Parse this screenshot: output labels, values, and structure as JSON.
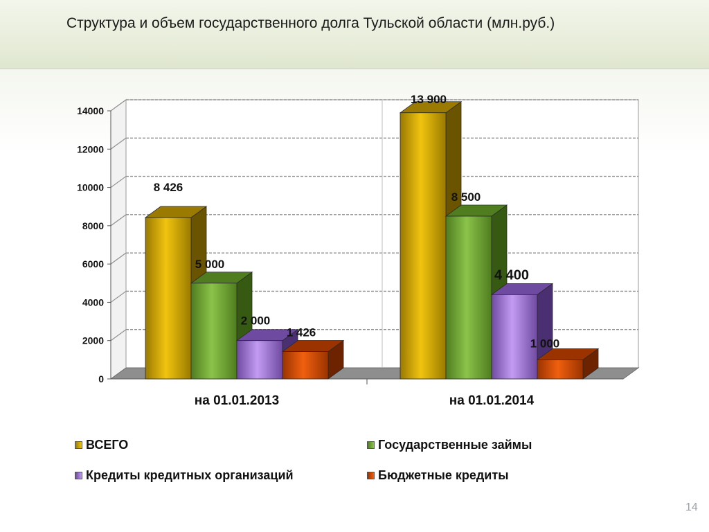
{
  "header": {
    "title": "Структура и объем государственного долга Тульской области (млн.руб.)"
  },
  "chart_data": {
    "type": "bar",
    "categories": [
      "на 01.01.2013",
      "на 01.01.2014"
    ],
    "ylim": [
      0,
      14000
    ],
    "yticks": [
      "0",
      "2000",
      "4000",
      "6000",
      "8000",
      "10000",
      "12000",
      "14000"
    ],
    "grid": true,
    "legend_position": "bottom",
    "series": [
      {
        "name": "ВСЕГО",
        "values": [
          8426,
          13900
        ],
        "labels": [
          "8 426",
          "13 900"
        ],
        "color": "#f1c40f",
        "color_dark": "#9a7a00",
        "color_side": "#6b5400"
      },
      {
        "name": "Государственные займы",
        "values": [
          5000,
          8500
        ],
        "labels": [
          "5 000",
          "8 500"
        ],
        "color": "#8bc34a",
        "color_dark": "#4f7d1f",
        "color_side": "#365a12"
      },
      {
        "name": "Кредиты кредитных организаций",
        "values": [
          2000,
          4400
        ],
        "labels": [
          "2 000",
          "4 400"
        ],
        "color": "#c39bf2",
        "color_dark": "#6e4aa0",
        "color_side": "#4b2f73"
      },
      {
        "name": "Бюджетные кредиты",
        "values": [
          1426,
          1000
        ],
        "labels": [
          "1 426",
          "1 000"
        ],
        "color": "#f0600e",
        "color_dark": "#9a3300",
        "color_side": "#6d2300"
      }
    ]
  },
  "footer": {
    "page_number": "14"
  }
}
